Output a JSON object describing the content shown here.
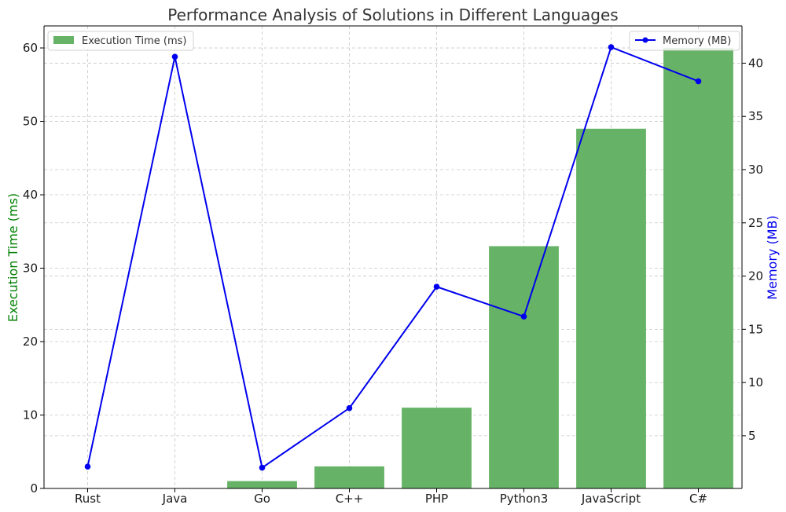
{
  "chart_data": {
    "type": "bar",
    "title": "Performance Analysis of Solutions in Different Languages",
    "categories": [
      "Rust",
      "Java",
      "Go",
      "C++",
      "PHP",
      "Python3",
      "JavaScript",
      "C#"
    ],
    "series": [
      {
        "name": "Execution Time (ms)",
        "type": "bar",
        "axis": "left",
        "color": "#66b266",
        "values": [
          0,
          0,
          1,
          3,
          11,
          33,
          49,
          60
        ]
      },
      {
        "name": "Memory (MB)",
        "type": "line",
        "axis": "right",
        "color": "#0000ee",
        "marker": "circle",
        "values": [
          2.1,
          40.6,
          2.0,
          7.6,
          19.0,
          16.2,
          41.5,
          38.3
        ]
      }
    ],
    "y_left": {
      "label": "Execution Time (ms)",
      "label_color": "#008000",
      "ylim": [
        0,
        63
      ],
      "ticks": [
        0,
        10,
        20,
        30,
        40,
        50,
        60
      ]
    },
    "y_right": {
      "label": "Memory (MB)",
      "label_color": "#0000ee",
      "ylim": [
        0.05,
        43.5
      ],
      "ticks": [
        5,
        10,
        15,
        20,
        25,
        30,
        35,
        40
      ]
    },
    "grid": true,
    "legend": [
      {
        "position": "top-left",
        "entries": [
          "Execution Time (ms)"
        ]
      },
      {
        "position": "top-right",
        "entries": [
          "Memory (MB)"
        ]
      }
    ]
  }
}
